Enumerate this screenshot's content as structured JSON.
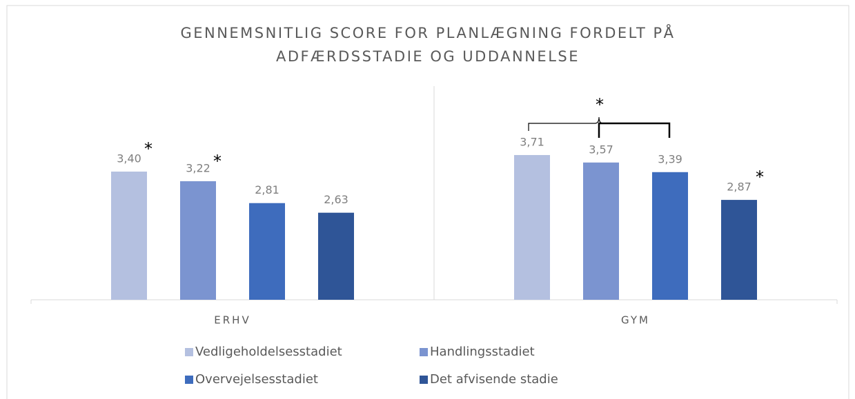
{
  "chart_data": {
    "type": "bar",
    "title": [
      "GENNEMSNITLIG SCORE FOR PLANLÆGNING FORDELT PÅ",
      "ADFÆRDSSTADIE OG UDDANNELSE"
    ],
    "categories": [
      "ERHV",
      "GYM"
    ],
    "series": [
      {
        "name": "Vedligeholdelsesstadiet",
        "color": "#b4c0e0",
        "values": [
          3.4,
          3.71
        ],
        "value_labels": [
          "3,40",
          "3,71"
        ]
      },
      {
        "name": "Handlingsstadiet",
        "color": "#7b94d0",
        "values": [
          3.22,
          3.57
        ],
        "value_labels": [
          "3,22",
          "3,57"
        ]
      },
      {
        "name": "Overvejelsesstadiet",
        "color": "#3e6cbd",
        "values": [
          2.81,
          3.39
        ],
        "value_labels": [
          "2,81",
          "3,39"
        ]
      },
      {
        "name": "Det afvisende stadie",
        "color": "#2f5597",
        "values": [
          2.63,
          2.87
        ],
        "value_labels": [
          "2,63",
          "2,87"
        ]
      }
    ],
    "ylim": [
      1,
      5
    ],
    "annotations": [
      "*",
      "*",
      "*",
      "*"
    ],
    "legend": "bottom"
  }
}
